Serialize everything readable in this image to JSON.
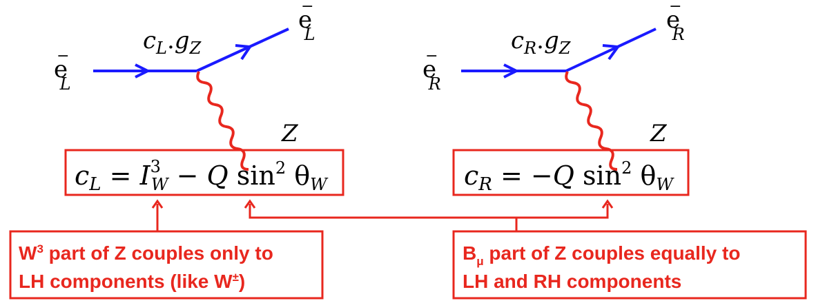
{
  "diagram": {
    "left_vertex": {
      "incoming": {
        "base": "e",
        "sup": "−",
        "sub": "L"
      },
      "outgoing": {
        "base": "e",
        "sup": "−",
        "sub": "L"
      },
      "coupling": {
        "c": "c",
        "c_sub": "L",
        "dot": ".",
        "g": "g",
        "g_sub": "Z"
      },
      "boson": "Z"
    },
    "right_vertex": {
      "incoming": {
        "base": "e",
        "sup": "−",
        "sub": "R"
      },
      "outgoing": {
        "base": "e",
        "sup": "−",
        "sub": "R"
      },
      "coupling": {
        "c": "c",
        "c_sub": "R",
        "dot": ".",
        "g": "g",
        "g_sub": "Z"
      },
      "boson": "Z"
    },
    "left_formula": {
      "lhs": "c",
      "lhs_sub": "L",
      "eq": " = ",
      "I": "I",
      "I_sup": "3",
      "I_sub": "W",
      "minus": " − ",
      "Q": "Q",
      "sin": " sin",
      "sin_sup": "2",
      "theta": " θ",
      "theta_sub": "W"
    },
    "right_formula": {
      "lhs": "c",
      "lhs_sub": "R",
      "eq": " = ",
      "minus": "−",
      "Q": "Q",
      "sin": " sin",
      "sin_sup": "2",
      "theta": " θ",
      "theta_sub": "W"
    },
    "left_note": {
      "line1_W": "W",
      "line1_sup": "3",
      "line1_rest": " part of Z couples only to",
      "line2": "LH components (like W",
      "line2_sup": "±",
      "line2_end": ")"
    },
    "right_note": {
      "line1_B": "B",
      "line1_sub": "μ",
      "line1_rest": " part of Z couples equally to",
      "line2": "LH and RH components"
    },
    "colors": {
      "fermion": "#1a1aff",
      "boson": "#e8271e",
      "annotation": "#e8271e",
      "text": "#000000"
    }
  }
}
